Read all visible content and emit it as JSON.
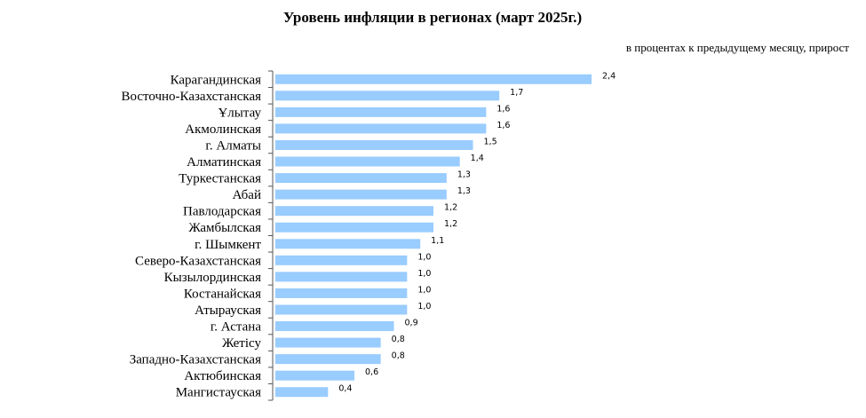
{
  "chart_data": {
    "type": "bar",
    "orientation": "horizontal",
    "title": "Уровень инфляции в регионах (март 2025г.)",
    "subtitle": "в процентах к предыдущему месяцу, прирост",
    "xlabel": "",
    "ylabel": "",
    "xlim": [
      0,
      2.4
    ],
    "grid": false,
    "bar_color": "#99CCFF",
    "categories": [
      "Карагандинская",
      "Восточно-Казахстанская",
      "Ұлытау",
      "Акмолинская",
      "г. Алматы",
      "Алматинская",
      "Туркестанская",
      "Абай",
      "Павлодарская",
      "Жамбылская",
      "г. Шымкент",
      "Северо-Казахстанская",
      "Кызылординская",
      "Костанайская",
      "Атырауская",
      "г. Астана",
      "Жетісу",
      "Западно-Казахстанская",
      "Актюбинская",
      "Мангистауская"
    ],
    "values": [
      2.4,
      1.7,
      1.6,
      1.6,
      1.5,
      1.4,
      1.3,
      1.3,
      1.2,
      1.2,
      1.1,
      1.0,
      1.0,
      1.0,
      1.0,
      0.9,
      0.8,
      0.8,
      0.6,
      0.4
    ],
    "value_labels": [
      "2,4",
      "1,7",
      "1,6",
      "1,6",
      "1,5",
      "1,4",
      "1,3",
      "1,3",
      "1,2",
      "1,2",
      "1,1",
      "1,0",
      "1,0",
      "1,0",
      "1,0",
      "0,9",
      "0,8",
      "0,8",
      "0,6",
      "0,4"
    ]
  }
}
